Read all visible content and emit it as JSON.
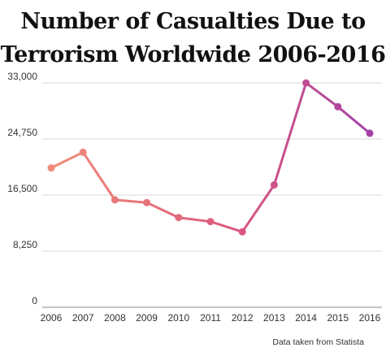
{
  "chart_data": {
    "type": "line",
    "title_lines": [
      "Number of Casualties Due to",
      "Terrorism Worldwide 2006-2016"
    ],
    "x": [
      "2006",
      "2007",
      "2008",
      "2009",
      "2010",
      "2011",
      "2012",
      "2013",
      "2014",
      "2015",
      "2016"
    ],
    "values": [
      20500,
      22800,
      15800,
      15400,
      13200,
      12600,
      11100,
      18000,
      33000,
      29500,
      25600
    ],
    "yticks": [
      "0",
      "8,250",
      "16,500",
      "24,750",
      "33,000"
    ],
    "ylim": [
      0,
      33000
    ],
    "grid": true,
    "legend": "none",
    "source": "Data taken from Statista",
    "colors": {
      "start": "#f28c78",
      "mid": "#d9577f",
      "end": "#a442a6",
      "grid": "#d9d9d9"
    }
  }
}
